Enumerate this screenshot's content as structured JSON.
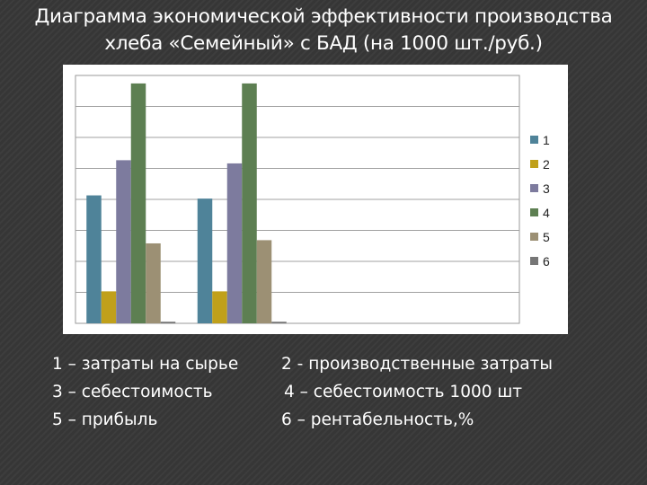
{
  "slide": {
    "title_line1": "Диаграмма экономической эффективности производства",
    "title_line2": "хлеба «Семейный» с БАД (на 1000 шт./руб.)"
  },
  "chart_data": {
    "type": "bar",
    "categories": [
      "",
      ""
    ],
    "series": [
      {
        "name": "1",
        "color": "#4f8399",
        "values": [
          8,
          7.8
        ]
      },
      {
        "name": "2",
        "color": "#c0a01a",
        "values": [
          2,
          2
        ]
      },
      {
        "name": "3",
        "color": "#7d7b9e",
        "values": [
          10.2,
          10
        ]
      },
      {
        "name": "4",
        "color": "#5d7f52",
        "values": [
          15,
          15
        ]
      },
      {
        "name": "5",
        "color": "#9c9074",
        "values": [
          5,
          5.2
        ]
      },
      {
        "name": "6",
        "color": "#767676",
        "values": [
          0.1,
          0.1
        ]
      }
    ],
    "ylim": [
      0,
      15.5
    ],
    "grid": true,
    "legend": "right",
    "title": "",
    "xlabel": "",
    "ylabel": ""
  },
  "captions": [
    "1 – затраты на сырье",
    "2 - производственные затраты",
    "3 – себестоимость",
    "4 – себестоимость 1000 шт",
    "5 – прибыль",
    "6 – рентабельность,%"
  ]
}
